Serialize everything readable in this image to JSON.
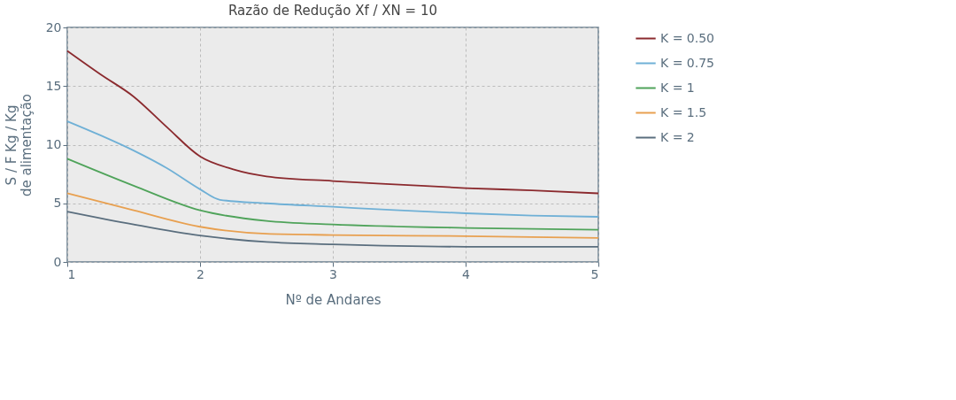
{
  "chart_data": {
    "type": "line",
    "title": "Razão de Redução  Xf / XN = 10",
    "xlabel": "Nº de Andares",
    "ylabel": "S / F  Kg / Kg\nde alimentação",
    "xlim": [
      1,
      5
    ],
    "ylim": [
      0,
      20
    ],
    "xticks": [
      1,
      2,
      3,
      4,
      5
    ],
    "yticks": [
      0,
      5,
      10,
      15,
      20
    ],
    "grid": true,
    "legend": "right",
    "marker": "none",
    "line_style": "solid",
    "series": [
      {
        "name": "K = 0.50",
        "color": "#8b2a2e",
        "x": [
          1,
          1.25,
          1.5,
          1.75,
          2,
          2.25,
          2.5,
          3,
          3.5,
          4,
          4.5,
          5
        ],
        "values": [
          18,
          16,
          14.1,
          11.5,
          9.0,
          7.9,
          7.3,
          6.9,
          6.6,
          6.3,
          6.1,
          5.85
        ]
      },
      {
        "name": "K = 0.75",
        "color": "#6fb0d6",
        "x": [
          1,
          1.25,
          1.5,
          1.75,
          2,
          2.15,
          2.5,
          3,
          3.5,
          4,
          4.5,
          5
        ],
        "values": [
          12,
          10.8,
          9.5,
          8.0,
          6.2,
          5.3,
          5.0,
          4.7,
          4.4,
          4.15,
          3.95,
          3.85
        ]
      },
      {
        "name": "K = 1",
        "color": "#4fa35a",
        "x": [
          1,
          1.5,
          2,
          2.5,
          3,
          4,
          5
        ],
        "values": [
          8.8,
          6.5,
          4.4,
          3.5,
          3.2,
          2.9,
          2.75
        ]
      },
      {
        "name": "K = 1.5",
        "color": "#e8a050",
        "x": [
          1,
          1.5,
          2,
          2.5,
          3,
          4,
          5
        ],
        "values": [
          5.85,
          4.4,
          3.0,
          2.4,
          2.3,
          2.2,
          2.05
        ]
      },
      {
        "name": "K = 2",
        "color": "#5a6e7e",
        "x": [
          1,
          1.5,
          2,
          2.5,
          3,
          4,
          5
        ],
        "values": [
          4.3,
          3.2,
          2.25,
          1.7,
          1.5,
          1.3,
          1.3
        ]
      }
    ]
  }
}
